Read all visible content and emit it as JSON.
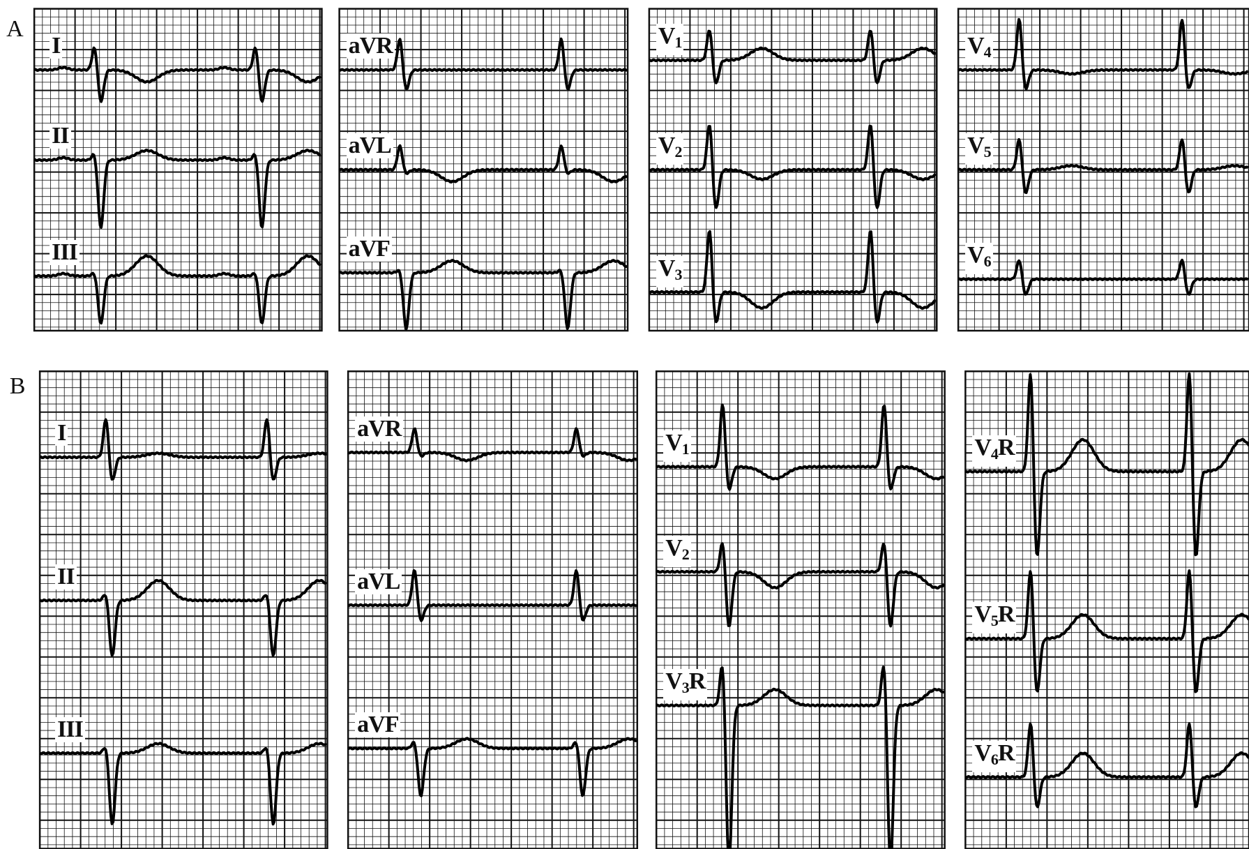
{
  "figure": {
    "panels": [
      {
        "label": "A",
        "columns": [
          {
            "leads": [
              {
                "name": "I",
                "sub": "",
                "suffix": ""
              },
              {
                "name": "II",
                "sub": "",
                "suffix": ""
              },
              {
                "name": "III",
                "sub": "",
                "suffix": ""
              }
            ]
          },
          {
            "leads": [
              {
                "name": "aVR",
                "sub": "",
                "suffix": ""
              },
              {
                "name": "aVL",
                "sub": "",
                "suffix": ""
              },
              {
                "name": "aVF",
                "sub": "",
                "suffix": ""
              }
            ]
          },
          {
            "leads": [
              {
                "name": "V",
                "sub": "1",
                "suffix": ""
              },
              {
                "name": "V",
                "sub": "2",
                "suffix": ""
              },
              {
                "name": "V",
                "sub": "3",
                "suffix": ""
              }
            ]
          },
          {
            "leads": [
              {
                "name": "V",
                "sub": "4",
                "suffix": ""
              },
              {
                "name": "V",
                "sub": "5",
                "suffix": ""
              },
              {
                "name": "V",
                "sub": "6",
                "suffix": ""
              }
            ]
          }
        ]
      },
      {
        "label": "B",
        "columns": [
          {
            "leads": [
              {
                "name": "I",
                "sub": "",
                "suffix": ""
              },
              {
                "name": "II",
                "sub": "",
                "suffix": ""
              },
              {
                "name": "III",
                "sub": "",
                "suffix": ""
              }
            ]
          },
          {
            "leads": [
              {
                "name": "aVR",
                "sub": "",
                "suffix": ""
              },
              {
                "name": "aVL",
                "sub": "",
                "suffix": ""
              },
              {
                "name": "aVF",
                "sub": "",
                "suffix": ""
              }
            ]
          },
          {
            "leads": [
              {
                "name": "V",
                "sub": "1",
                "suffix": ""
              },
              {
                "name": "V",
                "sub": "2",
                "suffix": ""
              },
              {
                "name": "V",
                "sub": "3",
                "suffix": "R"
              }
            ]
          },
          {
            "leads": [
              {
                "name": "V",
                "sub": "4",
                "suffix": "R"
              },
              {
                "name": "V",
                "sub": "5",
                "suffix": "R"
              },
              {
                "name": "V",
                "sub": "6",
                "suffix": "R"
              }
            ]
          }
        ]
      }
    ],
    "colors": {
      "grid": "#111111",
      "trace": "#000000",
      "background": "#ffffff"
    }
  }
}
